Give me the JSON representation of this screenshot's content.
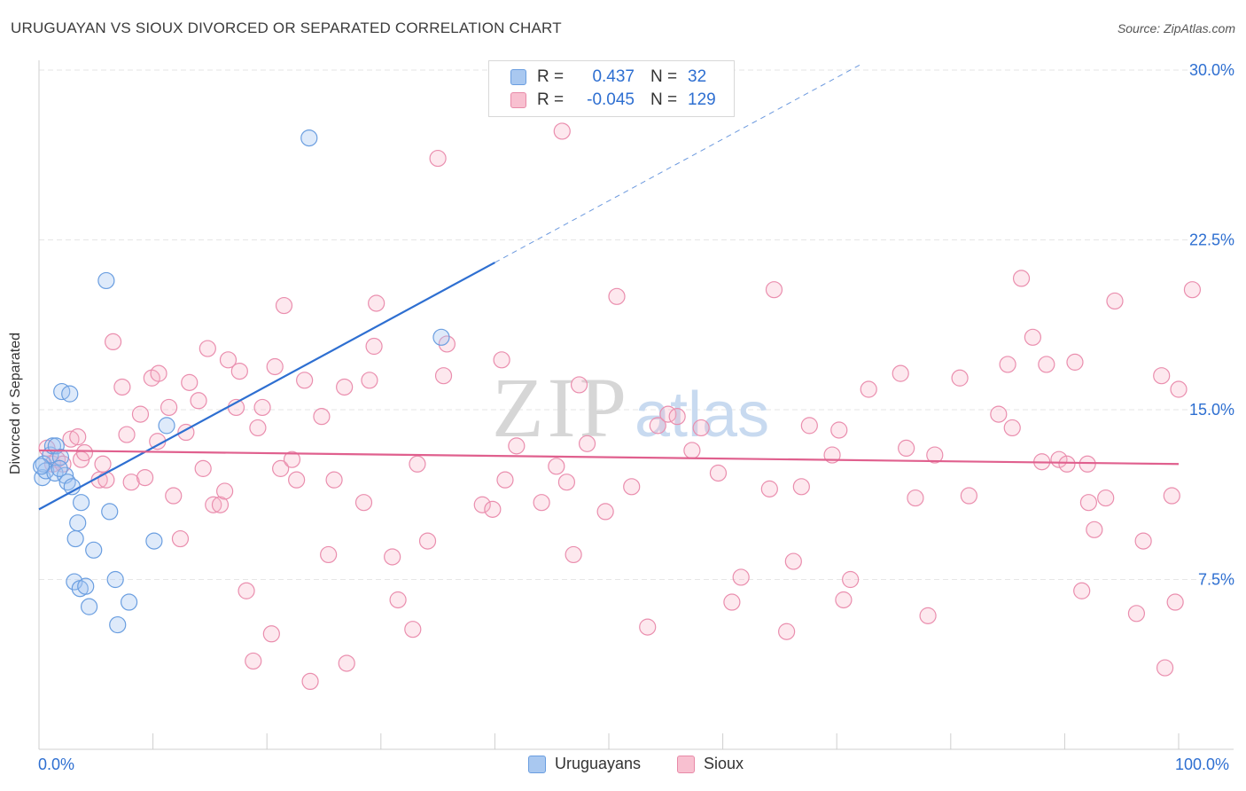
{
  "header": {
    "title": "URUGUAYAN VS SIOUX DIVORCED OR SEPARATED CORRELATION CHART",
    "source": "Source: ZipAtlas.com"
  },
  "watermark": {
    "zip": "ZIP",
    "atlas": "atlas"
  },
  "legend": {
    "rows": [
      {
        "r_label": "R =",
        "r_value": "0.437",
        "n_label": "N =",
        "n_value": "32",
        "color": "#a9c8f0",
        "border": "#6a9ee0"
      },
      {
        "r_label": "R =",
        "r_value": "-0.045",
        "n_label": "N =",
        "n_value": "129",
        "color": "#f8c0d0",
        "border": "#e88aa8"
      }
    ]
  },
  "bottom_legend": {
    "uruguayans": "Uruguayans",
    "sioux": "Sioux"
  },
  "colors": {
    "blue_fill": "rgba(160,196,240,0.35)",
    "blue_stroke": "#6a9ee0",
    "blue_line": "#2e6fd1",
    "pink_fill": "rgba(248,180,200,0.3)",
    "pink_stroke": "#ea8eae",
    "pink_line": "#e0608e",
    "tick_label": "#2e6fd1"
  },
  "chart_data": {
    "type": "scatter",
    "title": "URUGUAYAN VS SIOUX DIVORCED OR SEPARATED CORRELATION CHART",
    "xlabel": "",
    "ylabel": "Divorced or Separated",
    "xlim": [
      0,
      100
    ],
    "ylim": [
      0,
      31.5
    ],
    "x_tick_labels": [
      "0.0%",
      "100.0%"
    ],
    "y_ticks": [
      7.5,
      15.0,
      22.5,
      30.0
    ],
    "y_tick_labels": [
      "7.5%",
      "15.0%",
      "22.5%",
      "30.0%"
    ],
    "grid": true,
    "series": [
      {
        "name": "Uruguayans",
        "r": 0.437,
        "n": 32,
        "trend": {
          "x0": 0,
          "y0": 10.6,
          "x1": 40,
          "y1": 21.5,
          "dashed_to_x": 72
        },
        "points": [
          [
            0.3,
            12.0
          ],
          [
            0.4,
            12.6
          ],
          [
            0.6,
            12.3
          ],
          [
            1.0,
            13.0
          ],
          [
            1.2,
            13.4
          ],
          [
            1.4,
            12.2
          ],
          [
            1.5,
            13.4
          ],
          [
            1.9,
            12.9
          ],
          [
            2.0,
            15.8
          ],
          [
            2.3,
            12.1
          ],
          [
            2.5,
            11.8
          ],
          [
            2.7,
            15.7
          ],
          [
            2.9,
            11.6
          ],
          [
            3.1,
            7.4
          ],
          [
            3.2,
            9.3
          ],
          [
            3.4,
            10.0
          ],
          [
            3.6,
            7.1
          ],
          [
            3.7,
            10.9
          ],
          [
            4.1,
            7.2
          ],
          [
            4.4,
            6.3
          ],
          [
            4.8,
            8.8
          ],
          [
            5.9,
            20.7
          ],
          [
            6.2,
            10.5
          ],
          [
            6.7,
            7.5
          ],
          [
            6.9,
            5.5
          ],
          [
            7.9,
            6.5
          ],
          [
            10.1,
            9.2
          ],
          [
            11.2,
            14.3
          ],
          [
            23.7,
            27.0
          ],
          [
            35.3,
            18.2
          ],
          [
            0.2,
            12.5
          ],
          [
            1.8,
            12.4
          ]
        ]
      },
      {
        "name": "Sioux",
        "r": -0.045,
        "n": 129,
        "trend": {
          "x0": 0,
          "y0": 13.2,
          "x1": 100,
          "y1": 12.6
        },
        "points": [
          [
            0.7,
            13.3
          ],
          [
            1.2,
            12.6
          ],
          [
            1.6,
            12.8
          ],
          [
            2.1,
            12.6
          ],
          [
            2.8,
            13.7
          ],
          [
            3.4,
            13.8
          ],
          [
            3.7,
            12.8
          ],
          [
            4.0,
            13.1
          ],
          [
            5.3,
            11.9
          ],
          [
            5.6,
            12.6
          ],
          [
            5.9,
            11.9
          ],
          [
            6.5,
            18.0
          ],
          [
            7.3,
            16.0
          ],
          [
            7.7,
            13.9
          ],
          [
            8.1,
            11.8
          ],
          [
            8.9,
            14.8
          ],
          [
            9.3,
            12.0
          ],
          [
            9.9,
            16.4
          ],
          [
            10.4,
            13.6
          ],
          [
            10.5,
            16.6
          ],
          [
            11.4,
            15.1
          ],
          [
            11.8,
            11.2
          ],
          [
            12.4,
            9.3
          ],
          [
            12.9,
            14.0
          ],
          [
            13.2,
            16.2
          ],
          [
            14.0,
            15.4
          ],
          [
            14.4,
            12.4
          ],
          [
            14.8,
            17.7
          ],
          [
            15.3,
            10.8
          ],
          [
            15.9,
            10.8
          ],
          [
            16.3,
            11.4
          ],
          [
            16.6,
            17.2
          ],
          [
            17.3,
            15.1
          ],
          [
            17.6,
            16.7
          ],
          [
            18.2,
            7.0
          ],
          [
            18.8,
            3.9
          ],
          [
            19.2,
            14.2
          ],
          [
            19.6,
            15.1
          ],
          [
            20.4,
            5.1
          ],
          [
            20.7,
            16.9
          ],
          [
            21.2,
            12.4
          ],
          [
            21.5,
            19.6
          ],
          [
            22.2,
            12.8
          ],
          [
            22.6,
            11.9
          ],
          [
            23.3,
            16.3
          ],
          [
            23.8,
            3.0
          ],
          [
            24.8,
            14.7
          ],
          [
            25.4,
            8.6
          ],
          [
            25.9,
            11.9
          ],
          [
            26.8,
            16.0
          ],
          [
            27.0,
            3.8
          ],
          [
            28.5,
            10.9
          ],
          [
            29.0,
            16.3
          ],
          [
            29.6,
            19.7
          ],
          [
            29.4,
            17.8
          ],
          [
            31.0,
            8.5
          ],
          [
            31.5,
            6.6
          ],
          [
            32.8,
            5.3
          ],
          [
            33.2,
            12.6
          ],
          [
            34.1,
            9.2
          ],
          [
            35.0,
            26.1
          ],
          [
            35.5,
            16.5
          ],
          [
            35.8,
            17.9
          ],
          [
            38.9,
            10.8
          ],
          [
            39.8,
            10.6
          ],
          [
            40.6,
            17.2
          ],
          [
            40.9,
            11.9
          ],
          [
            41.9,
            13.4
          ],
          [
            44.1,
            10.9
          ],
          [
            45.4,
            12.5
          ],
          [
            45.9,
            27.3
          ],
          [
            46.3,
            11.8
          ],
          [
            46.9,
            8.6
          ],
          [
            47.4,
            16.1
          ],
          [
            48.1,
            13.5
          ],
          [
            49.7,
            10.5
          ],
          [
            50.7,
            20.0
          ],
          [
            52.0,
            11.6
          ],
          [
            53.4,
            5.4
          ],
          [
            54.3,
            14.3
          ],
          [
            55.2,
            14.8
          ],
          [
            56.0,
            14.7
          ],
          [
            57.3,
            13.2
          ],
          [
            58.1,
            14.2
          ],
          [
            59.6,
            12.2
          ],
          [
            60.8,
            6.5
          ],
          [
            61.6,
            7.6
          ],
          [
            64.1,
            11.5
          ],
          [
            64.5,
            20.3
          ],
          [
            65.6,
            5.2
          ],
          [
            66.2,
            8.3
          ],
          [
            66.9,
            11.6
          ],
          [
            67.6,
            14.3
          ],
          [
            69.6,
            13.0
          ],
          [
            70.2,
            14.1
          ],
          [
            70.6,
            6.6
          ],
          [
            71.2,
            7.5
          ],
          [
            72.8,
            15.9
          ],
          [
            75.6,
            16.6
          ],
          [
            76.1,
            13.3
          ],
          [
            76.9,
            11.1
          ],
          [
            78.0,
            5.9
          ],
          [
            78.6,
            13.0
          ],
          [
            80.8,
            16.4
          ],
          [
            81.6,
            11.2
          ],
          [
            84.2,
            14.8
          ],
          [
            85.0,
            17.0
          ],
          [
            85.4,
            14.2
          ],
          [
            86.2,
            20.8
          ],
          [
            87.2,
            18.2
          ],
          [
            88.4,
            17.0
          ],
          [
            89.5,
            12.8
          ],
          [
            90.2,
            12.6
          ],
          [
            90.9,
            17.1
          ],
          [
            91.5,
            7.0
          ],
          [
            92.1,
            10.9
          ],
          [
            92.6,
            9.7
          ],
          [
            93.6,
            11.1
          ],
          [
            94.4,
            19.8
          ],
          [
            96.3,
            6.0
          ],
          [
            96.9,
            9.2
          ],
          [
            98.5,
            16.5
          ],
          [
            98.8,
            3.6
          ],
          [
            99.4,
            11.2
          ],
          [
            99.7,
            6.5
          ],
          [
            100.0,
            15.9
          ],
          [
            101.2,
            20.3
          ],
          [
            88.0,
            12.7
          ],
          [
            92.0,
            12.6
          ]
        ]
      }
    ]
  }
}
